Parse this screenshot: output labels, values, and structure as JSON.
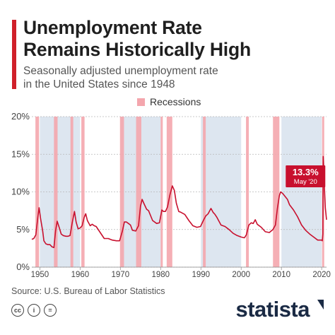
{
  "header": {
    "title_line1": "Unemployment Rate",
    "title_line2": "Remains Historically High",
    "subtitle_line1": "Seasonally adjusted unemployment rate",
    "subtitle_line2": "in the United States since 1948"
  },
  "legend": {
    "recessions_label": "Recessions"
  },
  "callout": {
    "value": "13.3%",
    "date": "May '20"
  },
  "footer": {
    "source": "Source: U.S. Bureau of Labor Statistics",
    "brand": "statista",
    "license_icons": [
      "cc-icon",
      "by-icon",
      "nd-icon"
    ]
  },
  "colors": {
    "accent": "#d0202a",
    "line": "#c8102e",
    "recession": "#f4a6ad",
    "shade": "#dde6f0"
  },
  "chart_data": {
    "type": "line",
    "title": "Unemployment Rate Remains Historically High",
    "subtitle": "Seasonally adjusted unemployment rate in the United States since 1948",
    "xlabel": "",
    "ylabel": "",
    "xlim": [
      1948,
      2021.2
    ],
    "ylim": [
      0,
      20
    ],
    "x_ticks": [
      1950,
      1960,
      1970,
      1980,
      1990,
      2000,
      2010,
      2020
    ],
    "y_ticks": [
      {
        "value": 0,
        "label": "0%"
      },
      {
        "value": 5,
        "label": "5%"
      },
      {
        "value": 10,
        "label": "10%"
      },
      {
        "value": 15,
        "label": "15%"
      },
      {
        "value": 20,
        "label": "20%"
      }
    ],
    "grid": true,
    "legend_position": "top-center",
    "recessions": [
      [
        1948.9,
        1949.8
      ],
      [
        1953.5,
        1954.4
      ],
      [
        1957.6,
        1958.3
      ],
      [
        1960.3,
        1961.1
      ],
      [
        1969.9,
        1970.9
      ],
      [
        1973.9,
        1975.2
      ],
      [
        1980.0,
        1980.5
      ],
      [
        1981.5,
        1982.9
      ],
      [
        1990.5,
        1991.2
      ],
      [
        2001.2,
        2001.9
      ],
      [
        2007.9,
        2009.5
      ],
      [
        2020.1,
        2020.3
      ]
    ],
    "shaded_decades": [
      [
        1950,
        1960
      ],
      [
        1970,
        1980
      ],
      [
        1990,
        2000
      ],
      [
        2010,
        2020
      ]
    ],
    "series": [
      {
        "name": "Unemployment rate",
        "x": [
          1948.0,
          1948.5,
          1949.0,
          1949.5,
          1949.8,
          1950.2,
          1950.7,
          1951.0,
          1951.5,
          1952.0,
          1952.5,
          1953.0,
          1953.5,
          1953.9,
          1954.3,
          1954.8,
          1955.3,
          1955.8,
          1956.5,
          1957.0,
          1957.5,
          1958.0,
          1958.6,
          1959.0,
          1959.5,
          1960.0,
          1960.5,
          1961.0,
          1961.4,
          1961.8,
          1962.5,
          1963.0,
          1963.5,
          1964.0,
          1965.0,
          1966.0,
          1967.0,
          1968.0,
          1969.0,
          1969.8,
          1970.5,
          1971.0,
          1971.5,
          1972.0,
          1972.5,
          1973.0,
          1973.8,
          1974.5,
          1975.0,
          1975.4,
          1975.9,
          1976.5,
          1977.0,
          1978.0,
          1979.0,
          1979.7,
          1980.3,
          1980.7,
          1981.2,
          1981.7,
          1982.3,
          1982.9,
          1983.4,
          1983.9,
          1984.5,
          1985.0,
          1986.0,
          1987.0,
          1988.0,
          1989.0,
          1989.9,
          1990.6,
          1991.2,
          1991.8,
          1992.5,
          1993.0,
          1993.5,
          1994.0,
          1995.0,
          1996.0,
          1997.0,
          1998.0,
          1999.0,
          2000.0,
          2000.8,
          2001.3,
          2001.9,
          2002.5,
          2003.0,
          2003.5,
          2004.0,
          2005.0,
          2006.0,
          2007.0,
          2007.9,
          2008.5,
          2009.0,
          2009.5,
          2009.8,
          2010.3,
          2010.9,
          2011.5,
          2012.0,
          2013.0,
          2014.0,
          2015.0,
          2016.0,
          2017.0,
          2018.0,
          2019.0,
          2020.0,
          2020.15,
          2020.28,
          2020.37,
          2020.5,
          2020.7,
          2020.9,
          2021.2
        ],
        "values": [
          3.7,
          3.8,
          4.3,
          6.6,
          7.9,
          6.4,
          4.8,
          3.5,
          3.1,
          3.0,
          3.0,
          2.7,
          2.6,
          4.8,
          6.1,
          5.3,
          4.4,
          4.2,
          4.1,
          4.1,
          4.2,
          5.8,
          7.4,
          6.0,
          5.1,
          5.2,
          5.5,
          6.6,
          7.1,
          6.2,
          5.5,
          5.7,
          5.5,
          5.4,
          4.6,
          3.8,
          3.8,
          3.6,
          3.5,
          3.5,
          4.8,
          6.0,
          6.0,
          5.8,
          5.6,
          4.9,
          4.8,
          5.5,
          8.1,
          9.0,
          8.4,
          7.7,
          7.5,
          6.2,
          5.8,
          5.9,
          7.6,
          7.4,
          7.4,
          8.0,
          9.6,
          10.8,
          10.2,
          8.5,
          7.4,
          7.3,
          7.0,
          6.2,
          5.5,
          5.3,
          5.4,
          6.2,
          6.8,
          7.1,
          7.8,
          7.3,
          7.0,
          6.6,
          5.6,
          5.4,
          5.0,
          4.5,
          4.2,
          4.0,
          3.9,
          4.3,
          5.6,
          5.9,
          5.8,
          6.3,
          5.7,
          5.3,
          4.7,
          4.6,
          5.0,
          5.6,
          7.8,
          9.5,
          10.0,
          9.8,
          9.4,
          9.0,
          8.3,
          7.6,
          6.7,
          5.6,
          4.9,
          4.4,
          4.0,
          3.6,
          3.6,
          3.5,
          4.4,
          14.7,
          13.3,
          10.2,
          7.9,
          6.3
        ]
      }
    ],
    "annotations": [
      {
        "x": 2020.37,
        "y": 13.3,
        "label": "13.3%",
        "sublabel": "May '20"
      }
    ]
  }
}
